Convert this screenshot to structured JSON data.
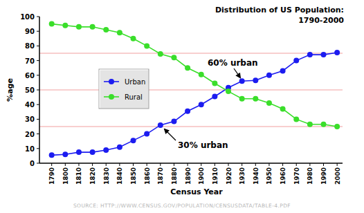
{
  "chart_data": {
    "type": "line",
    "title": "Distribution of US Population:",
    "subtitle": "1790-2000",
    "x_label": "Census Year",
    "y_label": "%age",
    "source": "SOURCE: HTTP://WWW.CENSUS.GOV/POPULATION/CENSUSDATA/TABLE-4.PDF",
    "x": [
      1790,
      1800,
      1810,
      1820,
      1830,
      1840,
      1850,
      1860,
      1870,
      1880,
      1890,
      1900,
      1910,
      1920,
      1930,
      1940,
      1950,
      1960,
      1970,
      1980,
      1990,
      2000
    ],
    "series": [
      {
        "name": "Urban",
        "color": "#1c1cf0",
        "marker": "circle",
        "values": [
          5.5,
          6,
          7.5,
          7.5,
          9,
          11,
          15.5,
          20,
          26,
          28.5,
          35.5,
          40,
          45.5,
          51.5,
          56,
          56.5,
          60,
          63,
          70,
          74,
          74,
          75.5
        ]
      },
      {
        "name": "Rural",
        "color": "#3ade2a",
        "marker": "circle",
        "values": [
          95,
          94,
          93,
          93,
          91,
          89,
          85,
          80,
          74.5,
          72,
          65,
          60.5,
          54.5,
          49,
          44,
          44,
          41,
          37,
          30,
          26.5,
          26.5,
          25
        ]
      }
    ],
    "xlim": [
      1781,
      2004
    ],
    "xticks": [
      1790,
      1800,
      1810,
      1820,
      1830,
      1840,
      1850,
      1860,
      1870,
      1880,
      1890,
      1900,
      1910,
      1920,
      1930,
      1940,
      1950,
      1960,
      1970,
      1980,
      1990,
      2000
    ],
    "ylim": [
      0,
      100
    ],
    "yticks": [
      0,
      10,
      20,
      30,
      40,
      50,
      60,
      70,
      80,
      90,
      100
    ],
    "hlines": [
      25,
      50,
      75
    ],
    "annotations": [
      "60% urban",
      "30% urban"
    ],
    "grid": false,
    "legend": "left"
  }
}
